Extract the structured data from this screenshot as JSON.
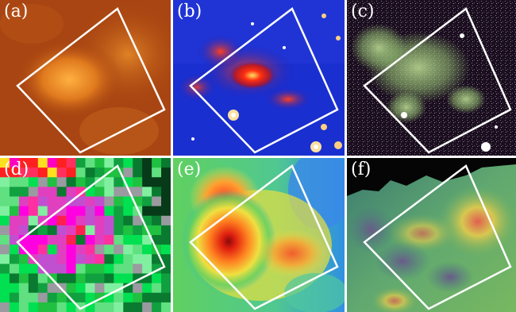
{
  "panels": [
    {
      "id": "a",
      "label": "(a)"
    },
    {
      "id": "b",
      "label": "(b)"
    },
    {
      "id": "c",
      "label": "(c)"
    },
    {
      "id": "d",
      "label": "(d)"
    },
    {
      "id": "e",
      "label": "(e)"
    },
    {
      "id": "f",
      "label": "(f)"
    }
  ]
}
